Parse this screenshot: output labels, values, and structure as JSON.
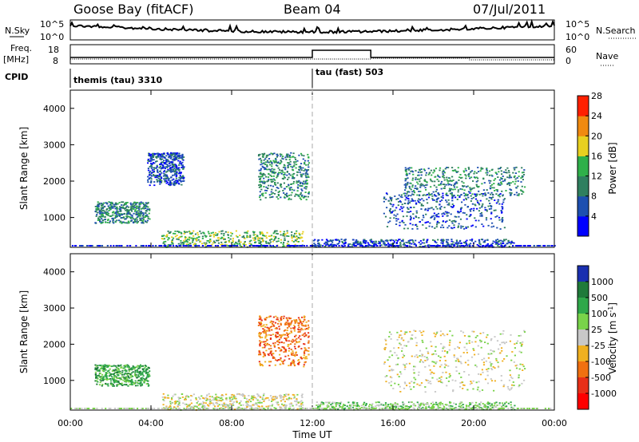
{
  "header": {
    "station": "Goose Bay (fitACF)",
    "beam": "Beam 04",
    "date": "07/Jul/2011"
  },
  "noise_panel": {
    "left_label": "N.Sky",
    "right_label": "N.Search",
    "left_ticks": [
      "10^5",
      "10^0"
    ],
    "right_ticks": [
      "10^5",
      "10^0"
    ]
  },
  "freq_panel": {
    "left_label_1": "Freq.",
    "left_label_2": "[MHz]",
    "right_label": "Nave",
    "left_ticks": [
      "18",
      "8"
    ],
    "right_ticks": [
      "60",
      "0"
    ]
  },
  "cpid_panel": {
    "label": "CPID",
    "modes": [
      {
        "text": "themis (tau) 3310",
        "start_hour": 0
      },
      {
        "text": "tau (fast) 503",
        "start_hour": 12
      }
    ]
  },
  "x_axis": {
    "label": "Time UT",
    "ticks": [
      "00:00",
      "04:00",
      "08:00",
      "12:00",
      "16:00",
      "20:00",
      "00:00"
    ],
    "tick_hours": [
      0,
      4,
      8,
      12,
      16,
      20,
      24
    ]
  },
  "chart_data": [
    {
      "type": "heatmap",
      "panel": "power",
      "ylabel": "Slant Range [km]",
      "yticks": [
        1000,
        2000,
        3000,
        4000
      ],
      "ylim": [
        180,
        4500
      ],
      "xlim_hours": [
        0,
        24
      ],
      "colorbar_label": "Power [dB]",
      "colorbar_ticks": [
        "4",
        "8",
        "12",
        "16",
        "20",
        "24",
        "28"
      ],
      "colorbar_colors": [
        "#0000ff",
        "#1d4fb0",
        "#2f7f5f",
        "#2fb04a",
        "#e8d020",
        "#f08a10",
        "#ff2000"
      ],
      "blobs": [
        {
          "t0": 1.2,
          "t1": 3.9,
          "r0": 860,
          "r1": 1450,
          "level": 2
        },
        {
          "t0": 3.8,
          "t1": 5.6,
          "r0": 1900,
          "r1": 2800,
          "level": 1
        },
        {
          "t0": 4.5,
          "t1": 11.5,
          "r0": 200,
          "r1": 650,
          "level": 3
        },
        {
          "t0": 9.3,
          "t1": 11.8,
          "r0": 1500,
          "r1": 2800,
          "level": 2
        },
        {
          "t0": 12.0,
          "t1": 22.0,
          "r0": 200,
          "r1": 420,
          "level": 1
        },
        {
          "t0": 15.5,
          "t1": 21.5,
          "r0": 700,
          "r1": 1700,
          "level": 1
        },
        {
          "t0": 16.5,
          "t1": 22.5,
          "r0": 1600,
          "r1": 2400,
          "level": 2
        }
      ]
    },
    {
      "type": "heatmap",
      "panel": "velocity",
      "ylabel": "Slant Range [km]",
      "yticks": [
        1000,
        2000,
        3000,
        4000
      ],
      "ylim": [
        180,
        4500
      ],
      "xlim_hours": [
        0,
        24
      ],
      "colorbar_label": "Velocity [m s^-1]",
      "colorbar_ticks": [
        "1000",
        "500",
        "100",
        "25",
        "-25",
        "-100",
        "-500",
        "-1000"
      ],
      "colorbar_colors": [
        "#1a2fb0",
        "#1f7a3a",
        "#2fa84a",
        "#79d34a",
        "#c8c8c8",
        "#f0b020",
        "#f07010",
        "#e83018",
        "#ff0000"
      ],
      "blobs": [
        {
          "t0": 1.2,
          "t1": 3.9,
          "r0": 860,
          "r1": 1450,
          "level": 2
        },
        {
          "t0": 4.5,
          "t1": 11.5,
          "r0": 200,
          "r1": 650,
          "level": 4
        },
        {
          "t0": 9.3,
          "t1": 11.8,
          "r0": 1400,
          "r1": 2800,
          "level": 6
        },
        {
          "t0": 12.0,
          "t1": 22.0,
          "r0": 200,
          "r1": 420,
          "level": 3
        },
        {
          "t0": 15.5,
          "t1": 22.5,
          "r0": 700,
          "r1": 2400,
          "level": 4
        }
      ]
    }
  ]
}
